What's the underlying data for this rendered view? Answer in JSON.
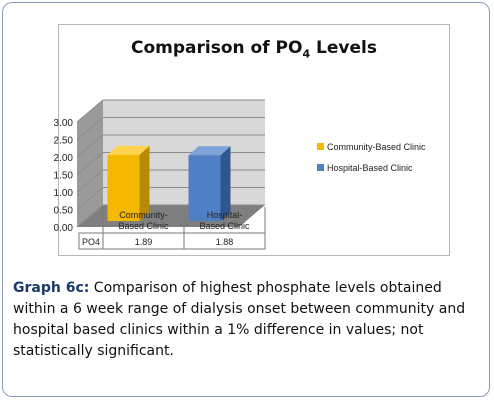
{
  "chart_data": {
    "type": "bar",
    "title_main": "Comparison of PO",
    "title_sub": "4",
    "title_tail": " Levels",
    "categories": [
      "Community-Based Clinic",
      "Hospital-Based Clinic"
    ],
    "category_lines": [
      [
        "Community-",
        "Based Clinic"
      ],
      [
        "Hospital-",
        "Based Clinic"
      ]
    ],
    "series": [
      {
        "name": "PO4",
        "values": [
          1.89,
          1.88
        ]
      }
    ],
    "value_labels": [
      "1.89",
      "1.88"
    ],
    "legend": [
      "Community-Based Clinic",
      "Hospital-Based Clinic"
    ],
    "legend_position": "right",
    "ylim": [
      0,
      3
    ],
    "yticks": [
      "3.00",
      "2.50",
      "2.00",
      "1.50",
      "1.00",
      "0.50",
      "0.00"
    ],
    "grid": true,
    "colors": {
      "community": "#f5b800",
      "community_side": "#b88a00",
      "community_top": "#ffd34d",
      "hospital": "#4f7fc4",
      "hospital_side": "#2f578f",
      "hospital_top": "#7ea3da",
      "wall": "#d8d8d8",
      "wall_side": "#9a9a9a",
      "floor": "#7f7f7f"
    }
  },
  "caption": {
    "lead": "Graph 6c:",
    "text": " Comparison of highest phosphate levels obtained within a 6 week range of dialysis onset between community and hospital based clinics within a 1% difference in values; not statistically significant."
  }
}
